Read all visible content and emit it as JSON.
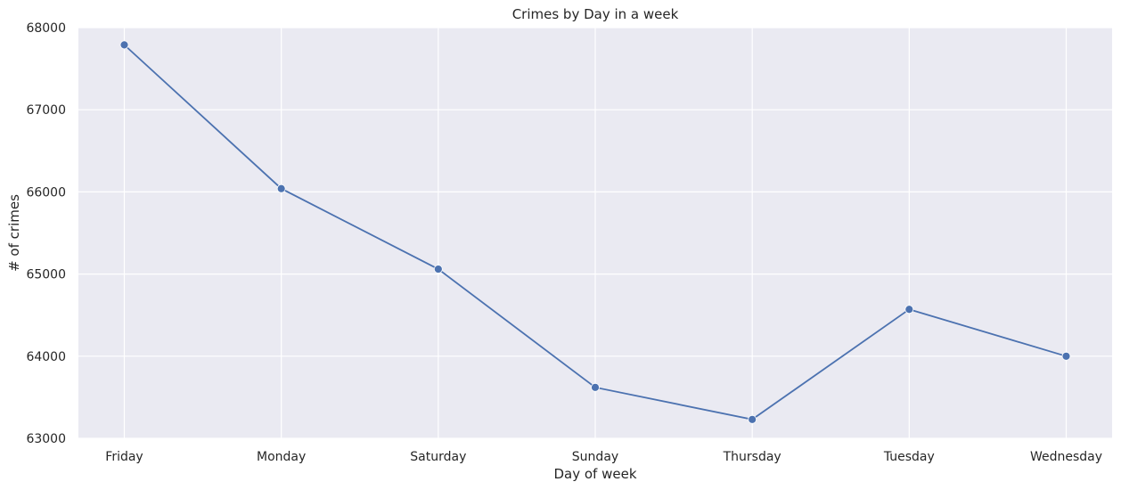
{
  "chart_data": {
    "type": "line",
    "title": "Crimes by Day in a week",
    "xlabel": "Day of week",
    "ylabel": "# of crimes",
    "categories": [
      "Friday",
      "Monday",
      "Saturday",
      "Sunday",
      "Thursday",
      "Tuesday",
      "Wednesday"
    ],
    "series": [
      {
        "values": [
          67790,
          66040,
          65060,
          63620,
          63230,
          64570,
          64000
        ],
        "color": "#4c72b0"
      }
    ],
    "ylim": [
      63000,
      68000
    ],
    "yticks": [
      "63000",
      "64000",
      "65000",
      "66000",
      "67000",
      "68000"
    ],
    "grid": true,
    "marker": "circle",
    "background_color": "#eaeaf2",
    "grid_color": "#ffffff"
  }
}
